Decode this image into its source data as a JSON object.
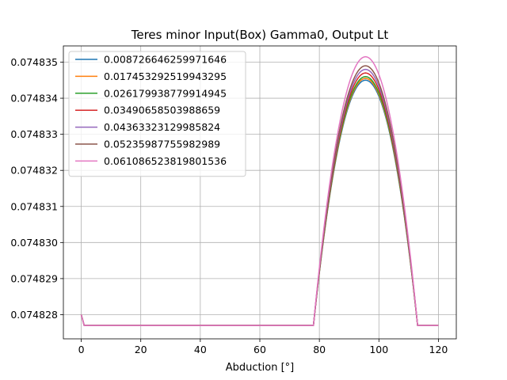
{
  "chart_data": {
    "type": "line",
    "title": "Teres minor Input(Box) Gamma0, Output Lt",
    "xlabel": "Abduction [°]",
    "ylabel": "",
    "xlim": [
      -6,
      126
    ],
    "ylim": [
      0.07482733,
      0.07483545
    ],
    "xticks": [
      0,
      20,
      40,
      60,
      80,
      100,
      120
    ],
    "xtick_labels": [
      "0",
      "20",
      "40",
      "60",
      "80",
      "100",
      "120"
    ],
    "yticks": [
      0.074828,
      0.074829,
      0.07483,
      0.074831,
      0.074832,
      0.074833,
      0.074834,
      0.074835
    ],
    "ytick_labels": [
      "0.074828",
      "0.074829",
      "0.074830",
      "0.074831",
      "0.074832",
      "0.074833",
      "0.074834",
      "0.074835"
    ],
    "grid": true,
    "legend_position": "upper-left",
    "baseline": 0.0748277,
    "start_value": 0.074828,
    "series": [
      {
        "name": "0.008726646259971646",
        "color": "#1f77b4",
        "peak": 0.0748345
      },
      {
        "name": "0.017453292519943295",
        "color": "#ff7f0e",
        "peak": 0.07483455
      },
      {
        "name": "0.026179938779914945",
        "color": "#2ca02c",
        "peak": 0.0748346
      },
      {
        "name": "0.03490658503988659",
        "color": "#d62728",
        "peak": 0.0748347
      },
      {
        "name": "0.04363323129985824",
        "color": "#9467bd",
        "peak": 0.0748348
      },
      {
        "name": "0.05235987755982989",
        "color": "#8c564b",
        "peak": 0.0748349
      },
      {
        "name": "0.061086523819801536",
        "color": "#e377c2",
        "peak": 0.07483515
      }
    ],
    "curve": {
      "rise_start": 78,
      "peak_x": 95.5,
      "fall_end": 113,
      "x_end": 120
    }
  }
}
